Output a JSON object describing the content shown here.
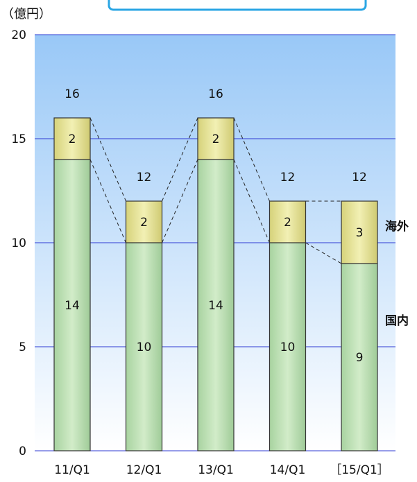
{
  "chart_data": {
    "type": "bar",
    "stacked": true,
    "unit_label": "（億円）",
    "categories": [
      "11/Q1",
      "12/Q1",
      "13/Q1",
      "14/Q1",
      "［15/Q1］"
    ],
    "series": [
      {
        "name": "国内",
        "values": [
          14,
          10,
          14,
          10,
          9
        ],
        "color": "#b8ddb0"
      },
      {
        "name": "海外",
        "values": [
          2,
          2,
          2,
          2,
          3
        ],
        "color": "#e6e396"
      }
    ],
    "totals": [
      16,
      12,
      16,
      12,
      12
    ],
    "ylim": [
      0,
      20
    ],
    "yticks": [
      0,
      5,
      10,
      15,
      20
    ],
    "grid": true,
    "connector_lines": "dashed",
    "colors": {
      "background_top": "#99c8f7",
      "background_bottom": "#ffffff",
      "grid": "#2f3bd3",
      "title_box_border": "#2aa6e4"
    }
  }
}
